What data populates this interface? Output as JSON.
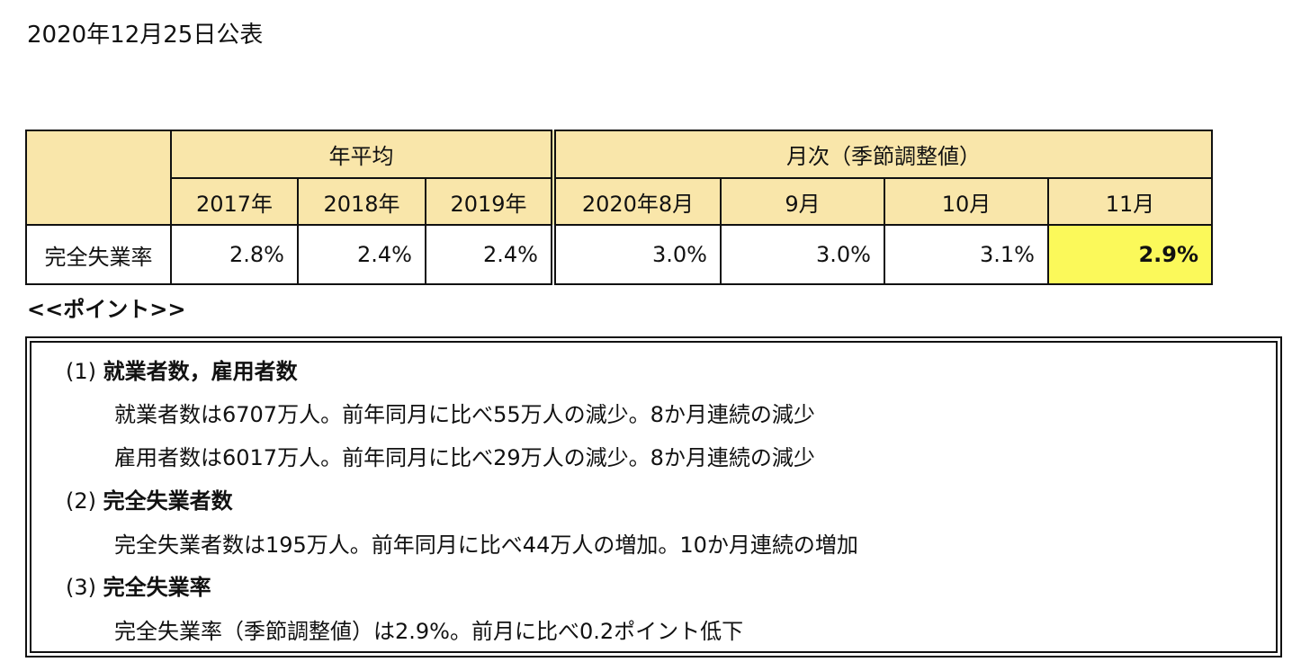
{
  "announcement_date": "2020年12月25日公表",
  "table": {
    "group_annual": "年平均",
    "group_monthly": "月次（季節調整値）",
    "periods": [
      "2017年",
      "2018年",
      "2019年",
      "2020年8月",
      "9月",
      "10月",
      "11月"
    ],
    "row_label": "完全失業率",
    "values": [
      "2.8%",
      "2.4%",
      "2.4%",
      "3.0%",
      "3.0%",
      "3.1%",
      "2.9%"
    ],
    "highlight_color": "#fbf95a",
    "header_color": "#f9e6aa"
  },
  "points": {
    "title": "<<ポイント>>",
    "sections": [
      {
        "number": "(1)",
        "title": "就業者数，雇用者数",
        "lines": [
          "就業者数は6707万人。前年同月に比べ55万人の減少。8か月連続の減少",
          "雇用者数は6017万人。前年同月に比べ29万人の減少。8か月連続の減少"
        ]
      },
      {
        "number": "(2)",
        "title": "完全失業者数",
        "lines": [
          "完全失業者数は195万人。前年同月に比べ44万人の増加。10か月連続の増加"
        ]
      },
      {
        "number": "(3)",
        "title": "完全失業率",
        "lines": [
          "完全失業率（季節調整値）は2.9%。前月に比べ0.2ポイント低下"
        ]
      }
    ]
  }
}
